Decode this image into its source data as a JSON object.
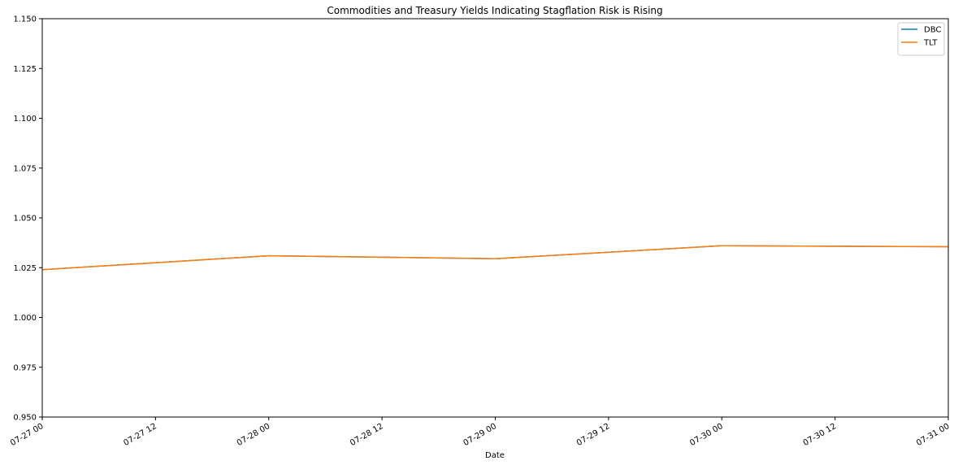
{
  "chart_data": {
    "type": "line",
    "title": "Commodities and Treasury Yields Indicating Stagflation Risk is Rising",
    "xlabel": "Date",
    "ylabel": "",
    "x": [
      "07-27 00",
      "07-28 00",
      "07-29 00",
      "07-30 00",
      "07-31 00"
    ],
    "xlim": [
      "07-27 00",
      "07-31 00"
    ],
    "xticks": [
      "07-27 00",
      "07-27 12",
      "07-28 00",
      "07-28 12",
      "07-29 00",
      "07-29 12",
      "07-30 00",
      "07-30 12",
      "07-31 00"
    ],
    "ylim": [
      0.95,
      1.15
    ],
    "yticks": [
      "0.950",
      "0.975",
      "1.000",
      "1.025",
      "1.050",
      "1.075",
      "1.100",
      "1.125",
      "1.150"
    ],
    "grid": false,
    "legend_position": "top-right",
    "series": [
      {
        "name": "DBC",
        "color": "#1f77b4",
        "values": [
          1.024,
          1.031,
          1.0295,
          1.036,
          1.0355
        ]
      },
      {
        "name": "TLT",
        "color": "#ff7f0e",
        "values": [
          1.024,
          1.031,
          1.0295,
          1.036,
          1.0355
        ]
      }
    ]
  }
}
